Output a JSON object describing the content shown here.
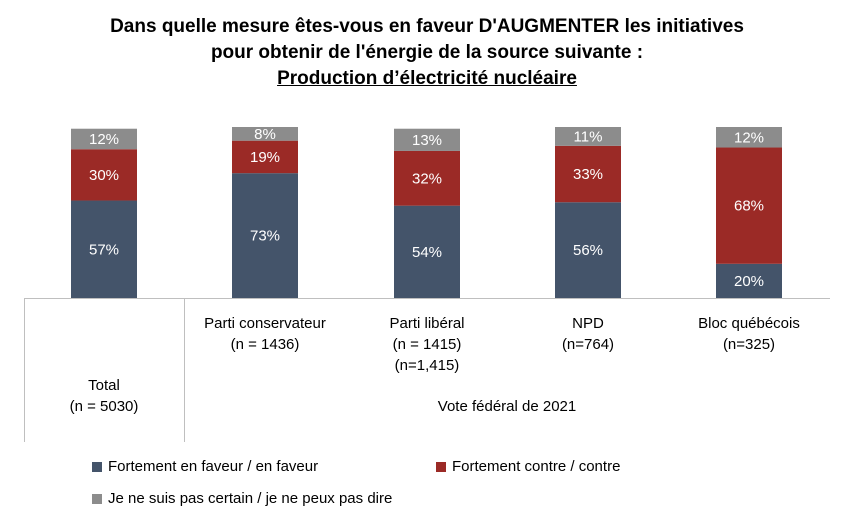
{
  "title": {
    "line1": "Dans quelle mesure êtes-vous en faveur D'AUGMENTER les initiatives",
    "line2": "pour obtenir de l'énergie de la source suivante :",
    "line3": "Production d’électricité nucléaire"
  },
  "chart_data": {
    "type": "bar",
    "stacked": true,
    "percent_scale": [
      0,
      100
    ],
    "categories": [
      {
        "lines": [
          "",
          "",
          "",
          "Total",
          "(n = 5030)"
        ]
      },
      {
        "lines": [
          "Parti conservateur",
          "(n = 1436)"
        ]
      },
      {
        "lines": [
          "Parti libéral",
          "(n = 1415)",
          "(n=1,415)"
        ]
      },
      {
        "lines": [
          "NPD",
          "(n=764)"
        ]
      },
      {
        "lines": [
          "Bloc québécois",
          "(n=325)"
        ]
      }
    ],
    "group_label": "Vote fédéral de 2021",
    "series": [
      {
        "name": "Fortement en faveur / en faveur",
        "color": "#44546a",
        "values": [
          57,
          73,
          54,
          56,
          20
        ],
        "labels": [
          "57%",
          "73%",
          "54%",
          "56%",
          "20%"
        ]
      },
      {
        "name": "Fortement contre / contre",
        "color": "#9b2a26",
        "values": [
          30,
          19,
          32,
          33,
          68
        ],
        "labels": [
          "30%",
          "19%",
          "32%",
          "33%",
          "68%"
        ]
      },
      {
        "name": "Je ne suis pas certain / je ne peux pas dire",
        "color": "#8c8c8c",
        "values": [
          12,
          8,
          13,
          11,
          12
        ],
        "labels": [
          "12%",
          "8%",
          "13%",
          "11%",
          "12%"
        ]
      }
    ],
    "legend_position": "bottom",
    "grid": false
  }
}
